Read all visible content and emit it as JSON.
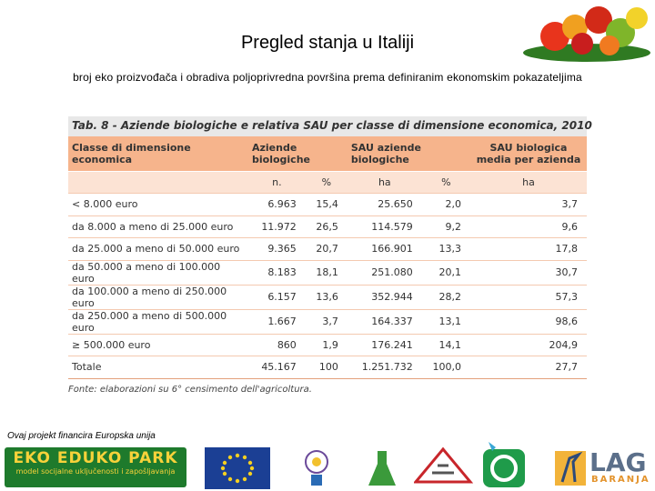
{
  "header": {
    "title": "Pregled stanja u Italiji",
    "subtitle": "broj eko proizvođača i obradiva poljoprivredna površina prema definiranim ekonomskim pokazateljima"
  },
  "table": {
    "caption": "Tab. 8 - Aziende biologiche e relativa SAU per classe di dimensione economica, 2010",
    "header": [
      "Classe di dimensione economica",
      "Aziende biologiche",
      "SAU aziende biologiche",
      "SAU biologica media per azienda"
    ],
    "units": [
      "n.",
      "%",
      "ha",
      "%",
      "ha"
    ],
    "rows": [
      [
        "< 8.000 euro",
        "6.963",
        "15,4",
        "25.650",
        "2,0",
        "3,7"
      ],
      [
        "da 8.000 a meno di 25.000 euro",
        "11.972",
        "26,5",
        "114.579",
        "9,2",
        "9,6"
      ],
      [
        "da 25.000 a meno di 50.000 euro",
        "9.365",
        "20,7",
        "166.901",
        "13,3",
        "17,8"
      ],
      [
        "da 50.000 a meno di 100.000 euro",
        "8.183",
        "18,1",
        "251.080",
        "20,1",
        "30,7"
      ],
      [
        "da 100.000 a meno di 250.000 euro",
        "6.157",
        "13,6",
        "352.944",
        "28,2",
        "57,3"
      ],
      [
        "da 250.000 a meno di 500.000 euro",
        "1.667",
        "3,7",
        "164.337",
        "13,1",
        "98,6"
      ],
      [
        "≥ 500.000 euro",
        "860",
        "1,9",
        "176.241",
        "14,1",
        "204,9"
      ],
      [
        "Totale",
        "45.167",
        "100",
        "1.251.732",
        "100,0",
        "27,7"
      ]
    ],
    "source": "Fonte: elaborazioni su 6° censimento dell'agricoltura."
  },
  "footer": {
    "funding": "Ovaj projekt financira Europska unija",
    "eko_logo": "EKO EDUKO PARK",
    "eko_tagline": "model socijalne uključenosti i zapošljavanja",
    "lag_logo": "LAG",
    "lag_subtext": "BARANJA"
  }
}
